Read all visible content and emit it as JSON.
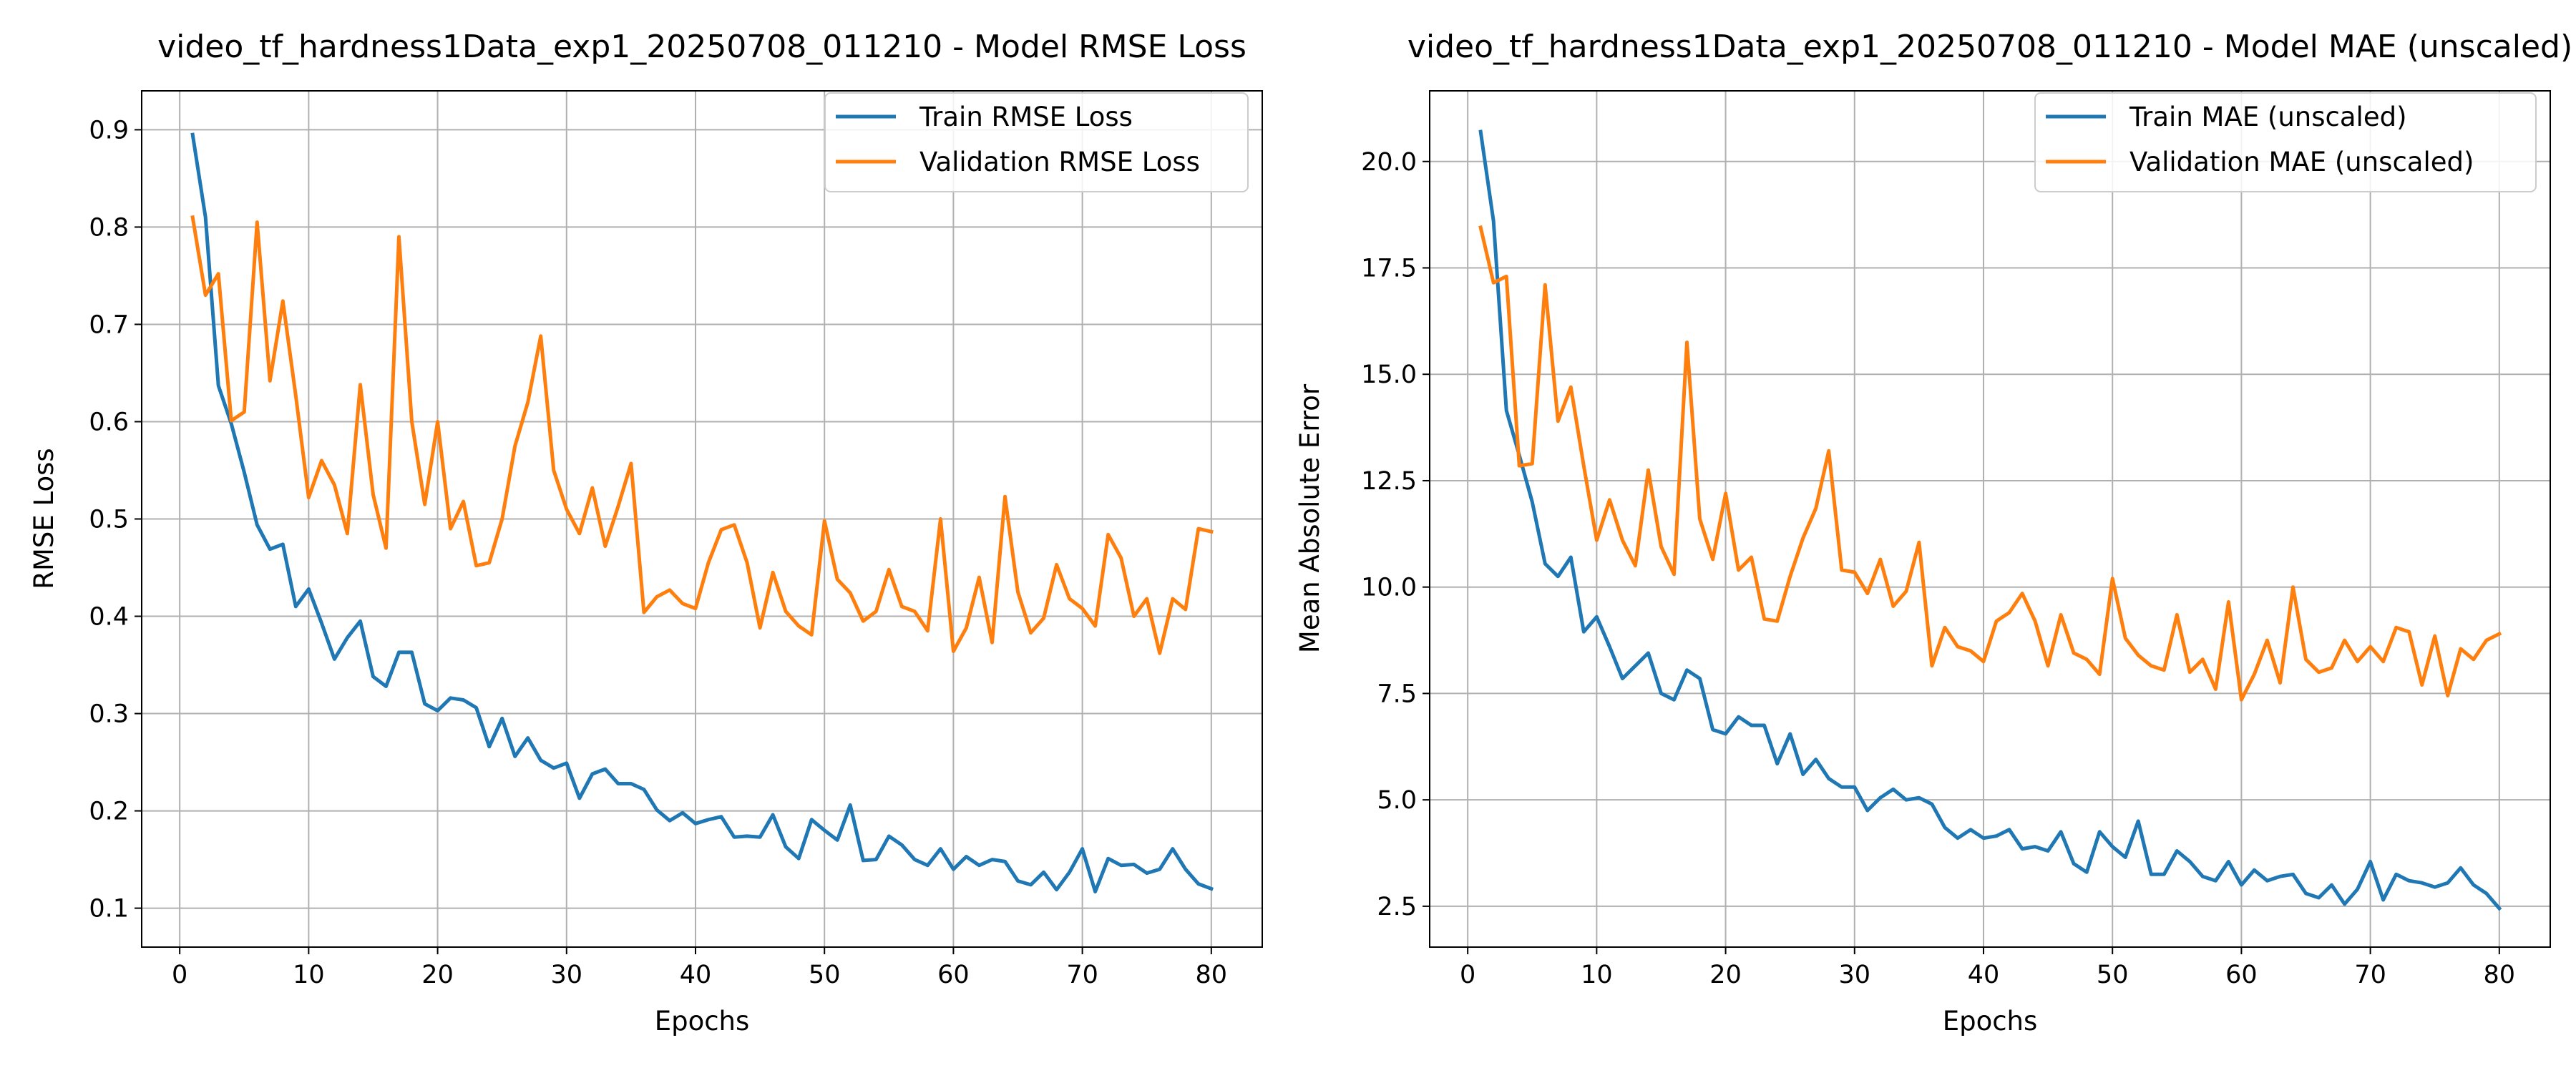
{
  "chart_data": [
    {
      "type": "line",
      "title": "video_tf_hardness1Data_exp1_20250708_011210 - Model RMSE Loss",
      "xlabel": "Epochs",
      "ylabel": "RMSE Loss",
      "xlim": [
        -2.95,
        83.95
      ],
      "ylim": [
        0.06,
        0.94
      ],
      "xticks": [
        0,
        10,
        20,
        30,
        40,
        50,
        60,
        70,
        80
      ],
      "yticks": [
        0.1,
        0.2,
        0.3,
        0.4,
        0.5,
        0.6,
        0.7,
        0.8,
        0.9
      ],
      "ytick_labels": [
        "0.1",
        "0.2",
        "0.3",
        "0.4",
        "0.5",
        "0.6",
        "0.7",
        "0.8",
        "0.9"
      ],
      "grid": true,
      "legend_position": "top-right",
      "series": [
        {
          "name": "Train RMSE Loss",
          "color": "#1f77b4",
          "values": [
            0.895,
            0.81,
            0.637,
            0.598,
            0.548,
            0.494,
            0.469,
            0.474,
            0.41,
            0.428,
            0.393,
            0.356,
            0.378,
            0.395,
            0.338,
            0.328,
            0.363,
            0.363,
            0.31,
            0.303,
            0.316,
            0.314,
            0.306,
            0.266,
            0.295,
            0.256,
            0.275,
            0.252,
            0.244,
            0.249,
            0.213,
            0.238,
            0.243,
            0.228,
            0.228,
            0.222,
            0.201,
            0.19,
            0.198,
            0.187,
            0.191,
            0.194,
            0.173,
            0.174,
            0.173,
            0.196,
            0.163,
            0.151,
            0.191,
            0.18,
            0.17,
            0.206,
            0.149,
            0.15,
            0.174,
            0.165,
            0.15,
            0.144,
            0.161,
            0.14,
            0.153,
            0.144,
            0.15,
            0.148,
            0.128,
            0.124,
            0.137,
            0.119,
            0.137,
            0.161,
            0.117,
            0.151,
            0.144,
            0.145,
            0.136,
            0.14,
            0.161,
            0.14,
            0.125,
            0.12
          ]
        },
        {
          "name": "Validation RMSE Loss",
          "color": "#ff7f0e",
          "values": [
            0.81,
            0.73,
            0.752,
            0.601,
            0.61,
            0.805,
            0.642,
            0.724,
            0.627,
            0.522,
            0.56,
            0.535,
            0.485,
            0.638,
            0.525,
            0.47,
            0.79,
            0.6,
            0.515,
            0.6,
            0.49,
            0.518,
            0.452,
            0.455,
            0.5,
            0.575,
            0.62,
            0.688,
            0.55,
            0.51,
            0.485,
            0.532,
            0.472,
            0.513,
            0.557,
            0.404,
            0.42,
            0.427,
            0.413,
            0.408,
            0.455,
            0.489,
            0.494,
            0.455,
            0.388,
            0.445,
            0.405,
            0.39,
            0.381,
            0.498,
            0.438,
            0.424,
            0.395,
            0.405,
            0.448,
            0.41,
            0.405,
            0.385,
            0.5,
            0.364,
            0.388,
            0.44,
            0.373,
            0.523,
            0.425,
            0.383,
            0.398,
            0.453,
            0.418,
            0.408,
            0.39,
            0.484,
            0.46,
            0.4,
            0.418,
            0.362,
            0.418,
            0.407,
            0.49,
            0.487
          ]
        }
      ]
    },
    {
      "type": "line",
      "title": "video_tf_hardness1Data_exp1_20250708_011210 - Model MAE (unscaled)",
      "xlabel": "Epochs",
      "ylabel": "Mean Absolute Error",
      "xlim": [
        -2.95,
        83.95
      ],
      "ylim": [
        1.54,
        21.66
      ],
      "xticks": [
        0,
        10,
        20,
        30,
        40,
        50,
        60,
        70,
        80
      ],
      "yticks": [
        2.5,
        5.0,
        7.5,
        10.0,
        12.5,
        15.0,
        17.5,
        20.0
      ],
      "ytick_labels": [
        "2.5",
        "5.0",
        "7.5",
        "10.0",
        "12.5",
        "15.0",
        "17.5",
        "20.0"
      ],
      "grid": true,
      "legend_position": "top-right",
      "series": [
        {
          "name": "Train MAE (unscaled)",
          "color": "#1f77b4",
          "values": [
            20.7,
            18.6,
            14.15,
            13.1,
            12.0,
            10.55,
            10.25,
            10.7,
            8.95,
            9.3,
            8.6,
            7.85,
            8.15,
            8.45,
            7.5,
            7.35,
            8.05,
            7.85,
            6.65,
            6.55,
            6.95,
            6.75,
            6.75,
            5.85,
            6.55,
            5.6,
            5.95,
            5.5,
            5.3,
            5.3,
            4.75,
            5.05,
            5.25,
            5.0,
            5.05,
            4.9,
            4.35,
            4.1,
            4.3,
            4.1,
            4.15,
            4.3,
            3.85,
            3.9,
            3.8,
            4.25,
            3.5,
            3.3,
            4.25,
            3.9,
            3.65,
            4.5,
            3.25,
            3.25,
            3.8,
            3.55,
            3.2,
            3.1,
            3.55,
            3.0,
            3.35,
            3.1,
            3.2,
            3.25,
            2.8,
            2.7,
            3.0,
            2.55,
            2.9,
            3.55,
            2.65,
            3.25,
            3.1,
            3.05,
            2.95,
            3.05,
            3.4,
            3.0,
            2.8,
            2.45
          ]
        },
        {
          "name": "Validation MAE (unscaled)",
          "color": "#ff7f0e",
          "values": [
            18.45,
            17.15,
            17.3,
            12.85,
            12.9,
            17.1,
            13.9,
            14.7,
            12.85,
            11.1,
            12.05,
            11.1,
            10.5,
            12.75,
            10.95,
            10.3,
            15.75,
            11.6,
            10.65,
            12.2,
            10.4,
            10.7,
            9.25,
            9.2,
            10.25,
            11.15,
            11.85,
            13.2,
            10.4,
            10.35,
            9.85,
            10.65,
            9.55,
            9.9,
            11.05,
            8.15,
            9.05,
            8.6,
            8.5,
            8.25,
            9.2,
            9.4,
            9.85,
            9.2,
            8.15,
            9.35,
            8.45,
            8.3,
            7.95,
            10.2,
            8.8,
            8.4,
            8.15,
            8.05,
            9.35,
            8.0,
            8.3,
            7.6,
            9.65,
            7.35,
            7.95,
            8.75,
            7.75,
            10.0,
            8.3,
            8.0,
            8.1,
            8.75,
            8.25,
            8.6,
            8.25,
            9.05,
            8.95,
            7.7,
            8.85,
            7.45,
            8.55,
            8.3,
            8.75,
            8.9
          ]
        }
      ]
    }
  ]
}
